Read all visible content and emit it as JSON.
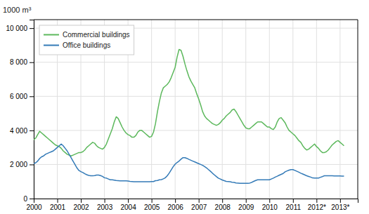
{
  "chart_data": {
    "type": "line",
    "ylabel": "1000 m³",
    "x": [
      2000,
      2000.0833333333333,
      2000.1666666666667,
      2000.25,
      2000.3333333333333,
      2000.4166666666667,
      2000.5,
      2000.5833333333333,
      2000.6666666666667,
      2000.75,
      2000.8333333333333,
      2000.9166666666667,
      2001,
      2001.0833333333333,
      2001.1666666666667,
      2001.25,
      2001.3333333333333,
      2001.4166666666667,
      2001.5,
      2001.5833333333333,
      2001.6666666666667,
      2001.75,
      2001.8333333333333,
      2001.9166666666667,
      2002,
      2002.0833333333333,
      2002.1666666666667,
      2002.25,
      2002.3333333333333,
      2002.4166666666667,
      2002.5,
      2002.5833333333333,
      2002.6666666666667,
      2002.75,
      2002.8333333333333,
      2002.9166666666667,
      2003,
      2003.0833333333333,
      2003.1666666666667,
      2003.25,
      2003.3333333333333,
      2003.4166666666667,
      2003.5,
      2003.5833333333333,
      2003.6666666666667,
      2003.75,
      2003.8333333333333,
      2003.9166666666667,
      2004,
      2004.0833333333333,
      2004.1666666666667,
      2004.25,
      2004.3333333333333,
      2004.4166666666667,
      2004.5,
      2004.5833333333333,
      2004.6666666666667,
      2004.75,
      2004.8333333333333,
      2004.9166666666667,
      2005,
      2005.0833333333333,
      2005.1666666666667,
      2005.25,
      2005.3333333333333,
      2005.4166666666667,
      2005.5,
      2005.5833333333333,
      2005.6666666666667,
      2005.75,
      2005.8333333333333,
      2005.9166666666667,
      2006,
      2006.0833333333333,
      2006.1666666666667,
      2006.25,
      2006.3333333333333,
      2006.4166666666667,
      2006.5,
      2006.5833333333333,
      2006.6666666666667,
      2006.75,
      2006.8333333333333,
      2006.9166666666667,
      2007,
      2007.0833333333333,
      2007.1666666666667,
      2007.25,
      2007.3333333333333,
      2007.4166666666667,
      2007.5,
      2007.5833333333333,
      2007.6666666666667,
      2007.75,
      2007.8333333333333,
      2007.9166666666667,
      2008,
      2008.0833333333333,
      2008.1666666666667,
      2008.25,
      2008.3333333333333,
      2008.4166666666667,
      2008.5,
      2008.5833333333333,
      2008.6666666666667,
      2008.75,
      2008.8333333333333,
      2008.9166666666667,
      2009,
      2009.0833333333333,
      2009.1666666666667,
      2009.25,
      2009.3333333333333,
      2009.4166666666667,
      2009.5,
      2009.5833333333333,
      2009.6666666666667,
      2009.75,
      2009.8333333333333,
      2009.9166666666667,
      2010,
      2010.0833333333333,
      2010.1666666666667,
      2010.25,
      2010.3333333333333,
      2010.4166666666667,
      2010.5,
      2010.5833333333333,
      2010.6666666666667,
      2010.75,
      2010.8333333333333,
      2010.9166666666667,
      2011,
      2011.0833333333333,
      2011.1666666666667,
      2011.25,
      2011.3333333333333,
      2011.4166666666667,
      2011.5,
      2011.5833333333333,
      2011.6666666666667,
      2011.75,
      2011.8333333333333,
      2011.9166666666667,
      2012,
      2012.0833333333333,
      2012.1666666666667,
      2012.25,
      2012.3333333333333,
      2012.4166666666667,
      2012.5,
      2012.5833333333333,
      2012.6666666666667,
      2012.75,
      2012.8333333333333,
      2012.9166666666667,
      2013,
      2013.0833333333333,
      2013.1666666666667
    ],
    "series": [
      {
        "name": "Commercial buildings",
        "color": "#5cb85c",
        "values": [
          3450,
          3550,
          3750,
          3950,
          3850,
          3750,
          3650,
          3550,
          3450,
          3350,
          3250,
          3150,
          3100,
          3050,
          2950,
          2800,
          2700,
          2600,
          2550,
          2500,
          2550,
          2600,
          2650,
          2700,
          2700,
          2750,
          2850,
          3000,
          3100,
          3200,
          3300,
          3250,
          3100,
          3000,
          2950,
          2900,
          3000,
          3200,
          3500,
          3800,
          4100,
          4500,
          4800,
          4700,
          4450,
          4200,
          4000,
          3850,
          3750,
          3700,
          3600,
          3600,
          3700,
          3900,
          4000,
          4000,
          3900,
          3800,
          3700,
          3600,
          3650,
          3900,
          4400,
          5100,
          5700,
          6200,
          6500,
          6600,
          6700,
          6850,
          7100,
          7400,
          7700,
          8300,
          8750,
          8700,
          8350,
          7900,
          7500,
          7150,
          6900,
          6700,
          6500,
          6150,
          5850,
          5500,
          5100,
          4850,
          4700,
          4600,
          4500,
          4400,
          4350,
          4300,
          4350,
          4450,
          4600,
          4700,
          4850,
          4950,
          5050,
          5200,
          5250,
          5100,
          4900,
          4700,
          4500,
          4300,
          4150,
          4100,
          4100,
          4200,
          4300,
          4400,
          4500,
          4500,
          4500,
          4400,
          4300,
          4200,
          4200,
          4100,
          4050,
          4200,
          4500,
          4700,
          4750,
          4600,
          4450,
          4200,
          4000,
          3900,
          3800,
          3700,
          3550,
          3400,
          3300,
          3100,
          2950,
          2850,
          2900,
          3000,
          3100,
          3200,
          3050,
          2950,
          2800,
          2700,
          2700,
          2750,
          2850,
          3000,
          3150,
          3250,
          3350,
          3400,
          3300,
          3200,
          3100
        ]
      },
      {
        "name": "Office buildings",
        "color": "#337ab7",
        "values": [
          2050,
          2100,
          2200,
          2350,
          2450,
          2500,
          2600,
          2650,
          2700,
          2750,
          2800,
          2900,
          3000,
          3100,
          3200,
          3100,
          2950,
          2800,
          2600,
          2400,
          2200,
          2000,
          1800,
          1650,
          1580,
          1530,
          1460,
          1400,
          1360,
          1340,
          1340,
          1350,
          1380,
          1380,
          1350,
          1300,
          1220,
          1200,
          1150,
          1100,
          1100,
          1080,
          1060,
          1050,
          1040,
          1040,
          1040,
          1040,
          1030,
          1010,
          1000,
          990,
          990,
          990,
          990,
          990,
          990,
          990,
          990,
          990,
          1000,
          1000,
          1050,
          1060,
          1100,
          1110,
          1160,
          1220,
          1340,
          1500,
          1680,
          1870,
          2020,
          2120,
          2200,
          2310,
          2400,
          2400,
          2360,
          2300,
          2250,
          2200,
          2150,
          2100,
          2050,
          2000,
          1950,
          1880,
          1800,
          1700,
          1600,
          1490,
          1390,
          1290,
          1200,
          1150,
          1090,
          1050,
          1010,
          1000,
          990,
          960,
          950,
          920,
          910,
          900,
          900,
          900,
          900,
          900,
          910,
          950,
          1010,
          1060,
          1100,
          1100,
          1100,
          1100,
          1100,
          1100,
          1100,
          1150,
          1200,
          1260,
          1310,
          1370,
          1420,
          1470,
          1570,
          1620,
          1670,
          1700,
          1700,
          1650,
          1600,
          1550,
          1490,
          1440,
          1390,
          1340,
          1300,
          1260,
          1210,
          1200,
          1200,
          1200,
          1250,
          1290,
          1340,
          1340,
          1340,
          1340,
          1340,
          1330,
          1330,
          1330,
          1330,
          1320,
          1320
        ]
      }
    ],
    "xlim": [
      2000,
      2013.75
    ],
    "xticks": [
      2000,
      2001,
      2002,
      2003,
      2004,
      2005,
      2006,
      2007,
      2008,
      2009,
      2010,
      2011,
      {
        "value": 2012,
        "label": "2012*"
      },
      {
        "value": 2013,
        "label": "2013*"
      }
    ],
    "ylim": [
      0,
      10500
    ],
    "yticks": [
      0,
      {
        "value": 2000,
        "label": "2 000"
      },
      {
        "value": 4000,
        "label": "4 000"
      },
      {
        "value": 6000,
        "label": "6 000"
      },
      {
        "value": 8000,
        "label": "8 000"
      },
      {
        "value": 10000,
        "label": "10 000"
      }
    ],
    "grid": true,
    "legend": "upper left"
  }
}
